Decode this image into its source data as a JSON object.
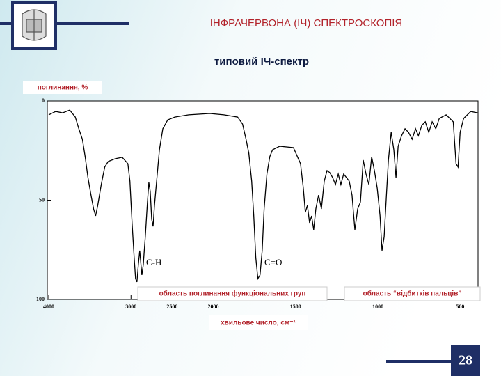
{
  "slide": {
    "title": "ІНФРАЧЕРВОНА (ІЧ) СПЕКТРОСКОПІЯ",
    "page_number": "28"
  },
  "chart_data": {
    "type": "line",
    "title": "типовий ІЧ-спектр",
    "y_label": "поглинання, %",
    "x_label": "хвильове число, см⁻¹",
    "annotations": [
      "C-H",
      "C=O"
    ],
    "regions": [
      "область поглинання функціональних груп",
      "область “відбитків пальців”"
    ],
    "color": "#000000",
    "xlim": [
      4000,
      400
    ],
    "x_scale_break": 2000,
    "x_scale_factor": 2,
    "xticks": [
      4000,
      3000,
      2500,
      2000,
      1500,
      1000,
      500
    ],
    "ylim": [
      0,
      100
    ],
    "yticks": [
      0,
      50,
      100
    ],
    "y_inverted": true,
    "x": [
      4000,
      3915,
      3830,
      3745,
      3677,
      3634,
      3591,
      3557,
      3523,
      3489,
      3455,
      3430,
      3404,
      3362,
      3319,
      3277,
      3191,
      3106,
      3038,
      3013,
      2987,
      2962,
      2945,
      2928,
      2911,
      2894,
      2868,
      2851,
      2826,
      2800,
      2783,
      2766,
      2749,
      2732,
      2715,
      2689,
      2655,
      2613,
      2553,
      2468,
      2298,
      2043,
      1936,
      1852,
      1822,
      1801,
      1784,
      1767,
      1754,
      1742,
      1729,
      1716,
      1703,
      1691,
      1674,
      1657,
      1640,
      1597,
      1513,
      1470,
      1453,
      1441,
      1428,
      1415,
      1403,
      1390,
      1377,
      1360,
      1343,
      1326,
      1309,
      1292,
      1275,
      1258,
      1241,
      1225,
      1208,
      1191,
      1174,
      1157,
      1140,
      1123,
      1106,
      1089,
      1072,
      1055,
      1038,
      1021,
      1004,
      987,
      975,
      962,
      949,
      936,
      919,
      903,
      890,
      877,
      856,
      835,
      814,
      792,
      771,
      754,
      733,
      712,
      691,
      670,
      648,
      627,
      585,
      542,
      525,
      513,
      500,
      479,
      436,
      394
    ],
    "values": [
      7.0,
      5.3,
      6.0,
      4.6,
      8.1,
      14.0,
      19.3,
      28.1,
      38.6,
      46.7,
      54.4,
      57.9,
      52.6,
      42.1,
      33.3,
      30.5,
      29.1,
      28.4,
      31.6,
      40.4,
      61.4,
      78.9,
      89.5,
      91.2,
      82.5,
      75.4,
      87.7,
      82.5,
      68.4,
      50.9,
      41.1,
      45.6,
      59.6,
      63.2,
      52.6,
      40.4,
      24.6,
      14.0,
      9.5,
      8.1,
      7.0,
      6.3,
      7.0,
      8.1,
      11.6,
      19.3,
      26.3,
      40.4,
      57.9,
      78.9,
      89.5,
      87.7,
      75.4,
      54.4,
      36.8,
      28.1,
      24.6,
      22.8,
      23.5,
      31.6,
      43.9,
      56.1,
      52.6,
      61.4,
      57.9,
      64.9,
      54.4,
      47.4,
      54.4,
      40.4,
      35.1,
      36.1,
      38.6,
      42.1,
      36.8,
      42.1,
      36.8,
      38.6,
      40.4,
      47.4,
      64.9,
      54.4,
      50.9,
      29.8,
      36.8,
      42.1,
      28.1,
      35.1,
      43.9,
      57.9,
      75.4,
      68.4,
      49.1,
      29.8,
      15.8,
      24.6,
      38.6,
      22.8,
      17.5,
      14.0,
      15.8,
      19.3,
      14.0,
      17.5,
      12.3,
      10.5,
      15.8,
      10.5,
      14.0,
      8.8,
      7.0,
      10.5,
      31.6,
      33.3,
      15.8,
      8.8,
      5.3,
      6.0
    ]
  }
}
